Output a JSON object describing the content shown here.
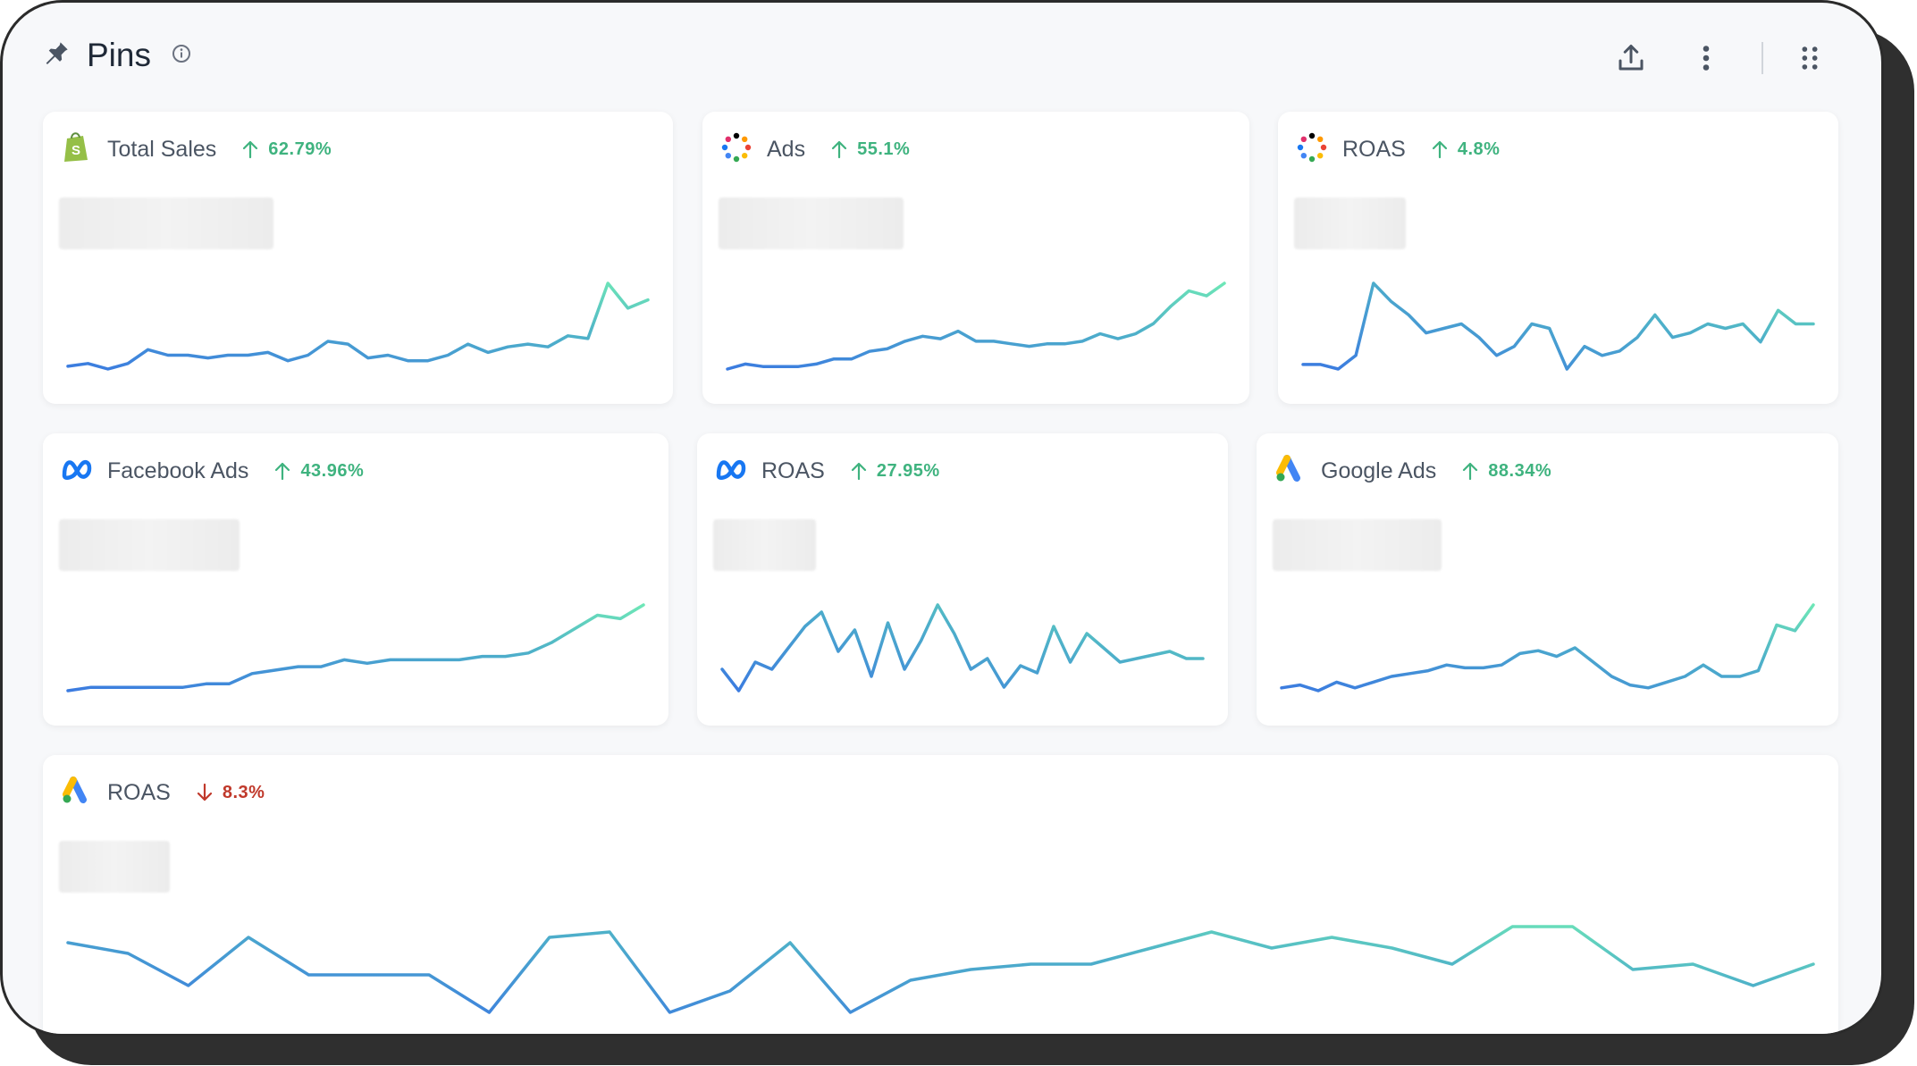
{
  "header": {
    "title": "Pins",
    "icons": {
      "pin": "pin-icon",
      "info": "info-icon",
      "export": "export-icon",
      "more": "more-vertical-icon",
      "grid": "grid-icon"
    }
  },
  "colors": {
    "up": "#3fb37f",
    "down": "#c0392b",
    "line_start": "#3b7be0",
    "line_end": "#6ee7b7"
  },
  "cards": [
    {
      "title": "Total Sales",
      "icon": "shopify-icon",
      "direction": "up",
      "delta": "62.79%",
      "chart_data": {
        "type": "line",
        "values": [
          10,
          11,
          9,
          11,
          16,
          14,
          14,
          13,
          14,
          14,
          15,
          12,
          14,
          19,
          18,
          13,
          14,
          12,
          12,
          14,
          18,
          15,
          17,
          18,
          17,
          21,
          20,
          40,
          31,
          34
        ]
      }
    },
    {
      "title": "Ads",
      "icon": "dots-icon",
      "direction": "up",
      "delta": "55.1%",
      "chart_data": {
        "type": "line",
        "values": [
          9,
          11,
          10,
          10,
          10,
          11,
          13,
          13,
          16,
          17,
          20,
          22,
          21,
          24,
          20,
          20,
          19,
          18,
          19,
          19,
          20,
          23,
          21,
          23,
          27,
          34,
          40,
          38,
          43
        ]
      }
    },
    {
      "title": "ROAS",
      "icon": "dots-icon",
      "direction": "up",
      "delta": "4.8%",
      "chart_data": {
        "type": "line",
        "values": [
          22,
          22,
          21,
          24,
          40,
          36,
          33,
          29,
          30,
          31,
          28,
          24,
          26,
          31,
          30,
          21,
          26,
          24,
          25,
          28,
          33,
          28,
          29,
          31,
          30,
          31,
          27,
          34,
          31,
          31
        ]
      }
    },
    {
      "title": "Facebook Ads",
      "icon": "meta-icon",
      "direction": "up",
      "delta": "43.96%",
      "chart_data": {
        "type": "line",
        "values": [
          8,
          9,
          9,
          9,
          9,
          9,
          10,
          10,
          13,
          14,
          15,
          15,
          17,
          16,
          17,
          17,
          17,
          17,
          18,
          18,
          19,
          22,
          26,
          30,
          29,
          33
        ]
      }
    },
    {
      "title": "ROAS",
      "icon": "meta-icon",
      "direction": "up",
      "delta": "27.95%",
      "chart_data": {
        "type": "line",
        "values": [
          21,
          15,
          23,
          21,
          27,
          33,
          37,
          26,
          32,
          19,
          34,
          21,
          29,
          39,
          31,
          21,
          24,
          16,
          22,
          20,
          33,
          23,
          31,
          27,
          23,
          24,
          25,
          26,
          24,
          24
        ]
      }
    },
    {
      "title": "Google Ads",
      "icon": "google-ads-icon",
      "direction": "up",
      "delta": "88.34%",
      "chart_data": {
        "type": "line",
        "values": [
          15,
          16,
          14,
          17,
          15,
          17,
          19,
          20,
          21,
          23,
          22,
          22,
          23,
          27,
          28,
          26,
          29,
          24,
          19,
          16,
          15,
          17,
          19,
          23,
          19,
          19,
          21,
          37,
          35,
          44
        ]
      }
    },
    {
      "title": "ROAS",
      "icon": "google-ads-icon",
      "direction": "down",
      "delta": "8.3%",
      "chart_data": {
        "type": "line",
        "values": [
          24,
          22,
          16,
          25,
          18,
          18,
          18,
          11,
          25,
          26,
          11,
          15,
          24,
          11,
          17,
          19,
          20,
          20,
          23,
          26,
          23,
          25,
          23,
          20,
          27,
          27,
          19,
          20,
          16,
          20
        ]
      }
    }
  ]
}
